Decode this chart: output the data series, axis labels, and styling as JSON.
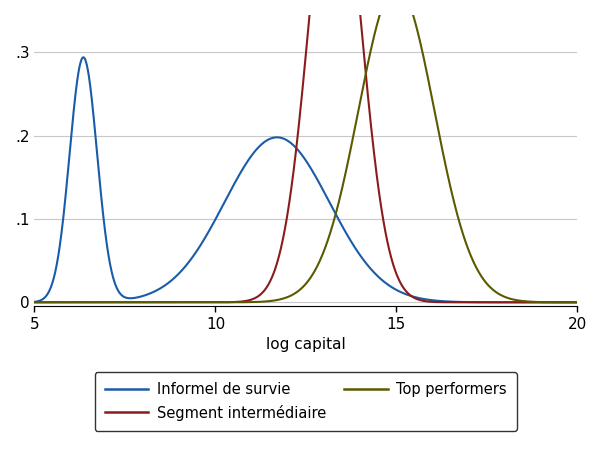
{
  "xlabel": "log capital",
  "xlim": [
    5,
    20
  ],
  "ylim": [
    -0.005,
    0.345
  ],
  "yticks": [
    0,
    0.1,
    0.2,
    0.3
  ],
  "ytick_labels": [
    "0",
    ".1",
    ".2",
    ".3"
  ],
  "xticks": [
    5,
    10,
    15,
    20
  ],
  "colors": {
    "survie": "#1a5ca8",
    "intermediaire": "#8b1c1c",
    "top": "#5a5a00"
  },
  "legend_labels": [
    "Informel de survie",
    "Segment intermédiaire",
    "Top performers"
  ],
  "background_color": "#ffffff",
  "grid_color": "#c8c8c8",
  "survie_components": [
    {
      "mean": 6.35,
      "std": 0.38,
      "weight": 0.28
    },
    {
      "mean": 11.7,
      "std": 1.45,
      "weight": 0.72
    }
  ],
  "inter_params": {
    "mean": 13.3,
    "std": 0.72
  },
  "top_params": {
    "mean": 15.0,
    "std": 1.05
  }
}
